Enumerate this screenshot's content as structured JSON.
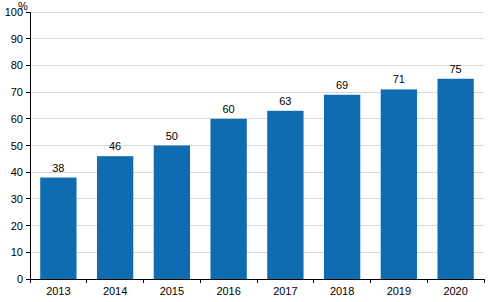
{
  "chart_data": {
    "type": "bar",
    "y_label": "%",
    "categories": [
      "2013",
      "2014",
      "2015",
      "2016",
      "2017",
      "2018",
      "2019",
      "2020"
    ],
    "values": [
      38,
      46,
      50,
      60,
      63,
      69,
      71,
      75
    ],
    "color": "#0f6cb0",
    "ylim": [
      0,
      100
    ],
    "yticks": [
      0,
      10,
      20,
      30,
      40,
      50,
      60,
      70,
      80,
      90,
      100
    ],
    "grid": true,
    "data_labels": true
  }
}
